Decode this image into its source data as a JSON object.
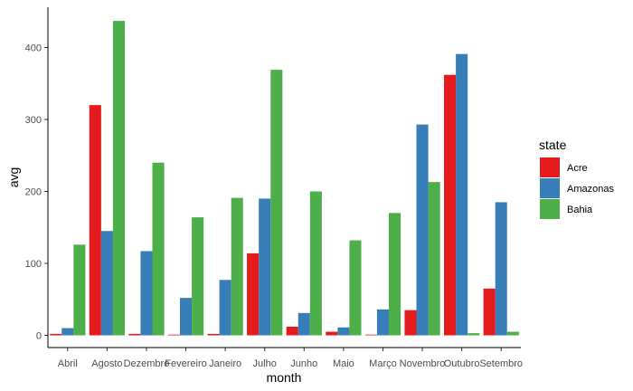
{
  "chart_data": {
    "type": "bar",
    "xlabel": "month",
    "ylabel": "avg",
    "ylim": [
      0,
      450
    ],
    "yticks": [
      0,
      100,
      200,
      300,
      400
    ],
    "grid": false,
    "legend_position": "right",
    "legend_title": "state",
    "categories": [
      "Abril",
      "Agosto",
      "Dezembro",
      "Fevereiro",
      "Janeiro",
      "Julho",
      "Junho",
      "Maio",
      "Março",
      "Novembro",
      "Outubro",
      "Setembro"
    ],
    "series": [
      {
        "name": "Acre",
        "color": "#e41a1c",
        "values": [
          2,
          320,
          2,
          1,
          2,
          114,
          12,
          5,
          1,
          35,
          362,
          65
        ]
      },
      {
        "name": "Amazonas",
        "color": "#377eb8",
        "values": [
          10,
          145,
          117,
          52,
          77,
          190,
          31,
          11,
          36,
          293,
          391,
          185
        ]
      },
      {
        "name": "Bahia",
        "color": "#4daf4a",
        "values": [
          126,
          437,
          240,
          164,
          191,
          369,
          200,
          132,
          170,
          213,
          3,
          5
        ]
      }
    ]
  }
}
